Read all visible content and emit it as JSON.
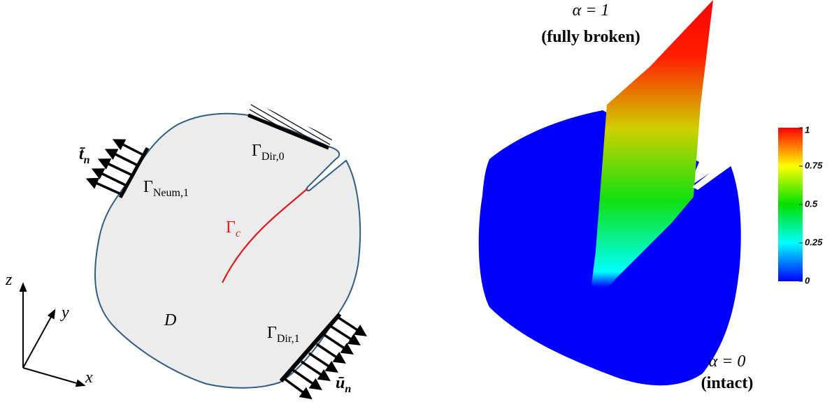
{
  "domain_sketch": {
    "traction": {
      "symbol": "t̄",
      "subscript": "n"
    },
    "neumann": {
      "symbol": "Γ",
      "subscript": "Neum,1"
    },
    "dirichlet_0": {
      "symbol": "Γ",
      "subscript": "Dir,0"
    },
    "crack": {
      "symbol": "Γ",
      "subscript": "c"
    },
    "domain": "D",
    "dirichlet_1": {
      "symbol": "Γ",
      "subscript": "Dir,1"
    },
    "displacement": {
      "symbol": "ū",
      "subscript": "n"
    },
    "axes": {
      "z": "z",
      "y": "y",
      "x": "x"
    }
  },
  "damage_plot": {
    "top_label": "α = 1",
    "top_note": "(fully broken)",
    "bottom_label": "α = 0",
    "bottom_note": "(intact)",
    "colorbar": {
      "lim": [
        0,
        1
      ],
      "ticks": [
        0,
        0.25,
        0.5,
        0.75,
        1
      ]
    }
  }
}
